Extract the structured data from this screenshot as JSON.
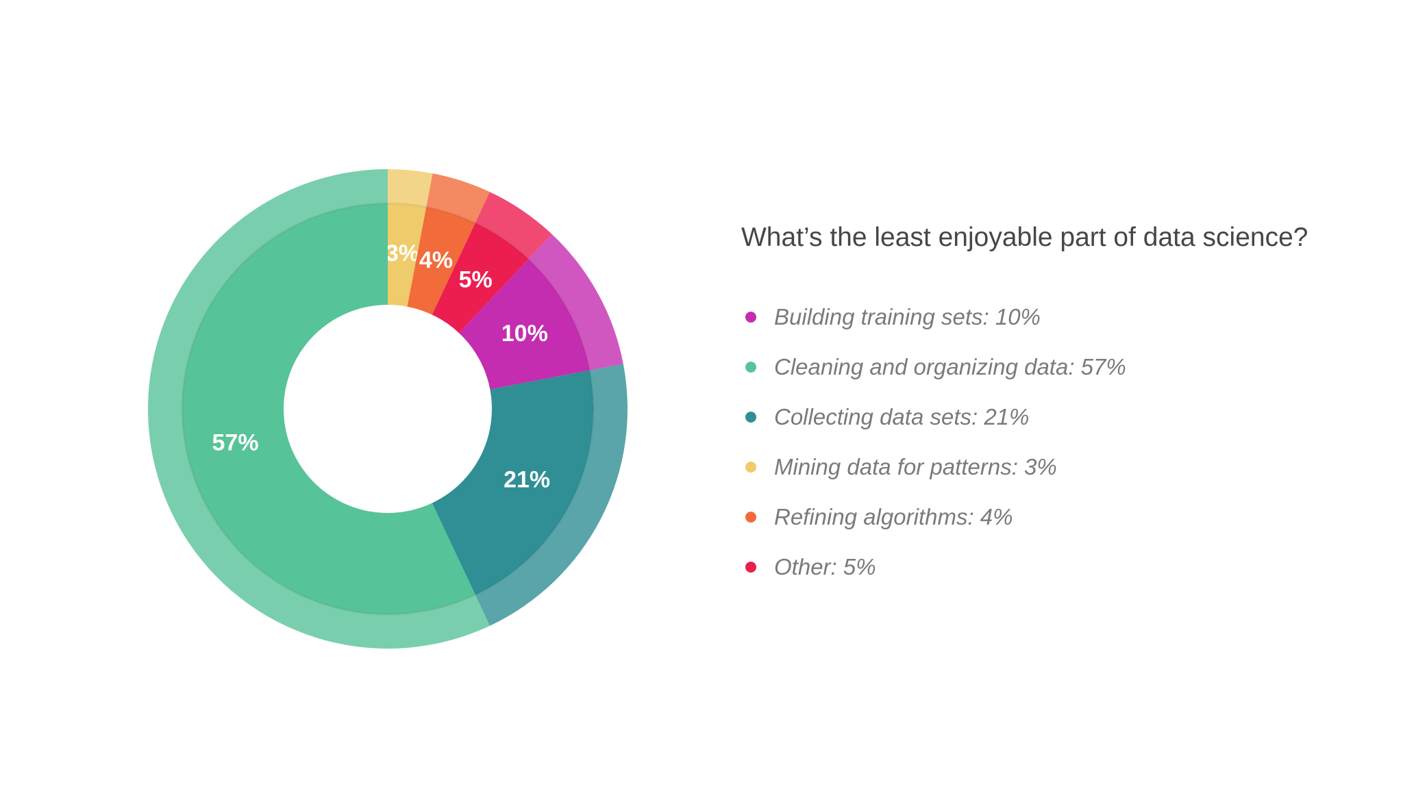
{
  "chart_data": {
    "type": "pie",
    "title": "What’s the least enjoyable part of data science?",
    "categories": [
      "Mining data for patterns",
      "Refining algorithms",
      "Other",
      "Building training sets",
      "Collecting data sets",
      "Cleaning and organizing data"
    ],
    "values": [
      3,
      4,
      5,
      10,
      21,
      57
    ],
    "labels": [
      "3%",
      "4%",
      "5%",
      "10%",
      "21%",
      "57%"
    ],
    "colors": [
      "#efcb6b",
      "#f26b3a",
      "#ec1d4f",
      "#c42db0",
      "#2f8f94",
      "#57c398"
    ],
    "legend_placement": "right"
  },
  "legend": [
    {
      "text": "Building training sets: 10%",
      "color": "#c42db0"
    },
    {
      "text": "Cleaning and organizing data: 57%",
      "color": "#57c398"
    },
    {
      "text": "Collecting data sets: 21%",
      "color": "#2f8f94"
    },
    {
      "text": "Mining data for patterns: 3%",
      "color": "#efcb6b"
    },
    {
      "text": "Refining algorithms: 4%",
      "color": "#f26b3a"
    },
    {
      "text": "Other: 5%",
      "color": "#ec1d4f"
    }
  ]
}
